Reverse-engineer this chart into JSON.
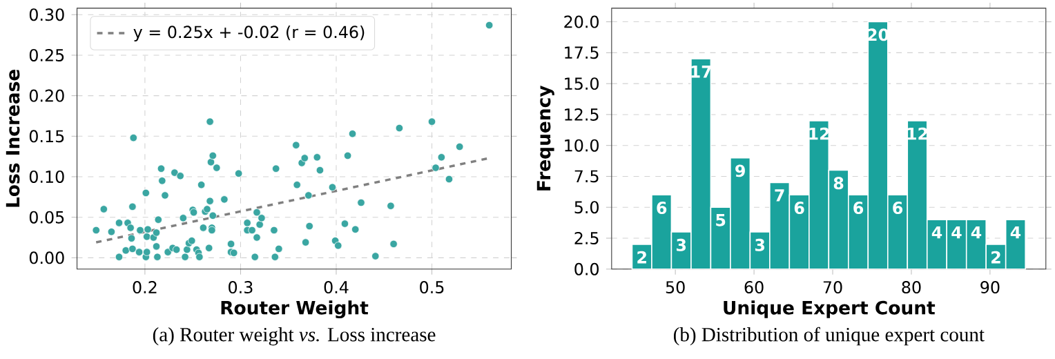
{
  "chart_data": [
    {
      "type": "scatter",
      "xlabel": "Router Weight",
      "ylabel": "Loss Increase",
      "annotations": [
        "(a) Router weight *vs.* Loss increase"
      ],
      "xlim": [
        0.129,
        0.583
      ],
      "ylim": [
        -0.014,
        0.308
      ],
      "xticks": [
        0.2,
        0.3,
        0.4,
        0.5
      ],
      "yticks": [
        {
          "value": 0,
          "label": "0.00"
        },
        {
          "value": 0.05,
          "label": "0.05"
        },
        {
          "value": 0.1,
          "label": "0.10"
        },
        {
          "value": 0.15,
          "label": "0.15"
        },
        {
          "value": 0.2,
          "label": "0.20"
        },
        {
          "value": 0.25,
          "label": "0.25"
        },
        {
          "value": 0.3,
          "label": "0.30"
        }
      ],
      "grid": true,
      "legend": "top left",
      "marker": "circle",
      "series": [
        {
          "color": "#3aa6a2",
          "x": [
            0.149,
            0.157,
            0.165,
            0.173,
            0.173,
            0.18,
            0.182,
            0.185,
            0.186,
            0.187,
            0.187,
            0.188,
            0.194,
            0.195,
            0.201,
            0.201,
            0.202,
            0.202,
            0.203,
            0.209,
            0.212,
            0.212,
            0.213,
            0.214,
            0.217,
            0.218,
            0.221,
            0.224,
            0.229,
            0.231,
            0.233,
            0.237,
            0.24,
            0.242,
            0.244,
            0.246,
            0.249,
            0.25,
            0.251,
            0.254,
            0.256,
            0.257,
            0.259,
            0.261,
            0.263,
            0.265,
            0.267,
            0.268,
            0.268,
            0.269,
            0.27,
            0.27,
            0.271,
            0.271,
            0.275,
            0.283,
            0.29,
            0.29,
            0.293,
            0.298,
            0.307,
            0.307,
            0.312,
            0.315,
            0.317,
            0.317,
            0.32,
            0.322,
            0.335,
            0.336,
            0.337,
            0.34,
            0.358,
            0.359,
            0.364,
            0.367,
            0.368,
            0.371,
            0.372,
            0.38,
            0.383,
            0.396,
            0.399,
            0.402,
            0.409,
            0.412,
            0.417,
            0.42,
            0.426,
            0.441,
            0.457,
            0.46,
            0.466,
            0.5,
            0.504,
            0.51,
            0.518,
            0.529,
            0.56
          ],
          "values": [
            0.034,
            0.06,
            0.032,
            0.043,
            0.001,
            0.009,
            0.043,
            0.037,
            0.024,
            0.063,
            0.011,
            0.148,
            0.007,
            0.034,
            0.08,
            0.001,
            0.007,
            0.026,
            0.035,
            0.025,
            0.014,
            0.031,
            0.001,
            0.047,
            0.11,
            0.095,
            0.077,
            0.007,
            0.012,
            0.105,
            0.01,
            0.101,
            0.049,
            0.001,
            0.01,
            0.018,
            0.021,
            0.059,
            0.056,
            0.01,
            0.006,
            0.001,
            0.09,
            0.037,
            0.057,
            0.06,
            0.012,
            0.07,
            0.168,
            0.118,
            0.037,
            0.034,
            0.052,
            0.126,
            0.111,
            0.072,
            0.017,
            0.007,
            0.006,
            0.104,
            0.043,
            0.034,
            0.034,
            0.001,
            0.025,
            0.056,
            0.041,
            0.049,
            0.034,
            0.001,
            0.11,
            0.011,
            0.139,
            0.09,
            0.117,
            0.123,
            0.019,
            0.077,
            0.039,
            0.124,
            0.108,
            0.087,
            0.021,
            0.015,
            0.042,
            0.126,
            0.153,
            0.035,
            0.068,
            0.002,
            0.064,
            0.017,
            0.16,
            0.168,
            0.111,
            0.124,
            0.097,
            0.137,
            0.287
          ]
        },
        {
          "type": "line",
          "name": "y = 0.25x + -0.02 (r = 0.46)",
          "color": "#808080",
          "line_style": "dashed",
          "marker": "none",
          "x": [
            0.149,
            0.56
          ],
          "values": [
            0.019,
            0.123
          ]
        }
      ]
    },
    {
      "type": "histogram",
      "xlabel": "Unique Expert Count",
      "ylabel": "Frequency",
      "annotations": [
        "(b) Distribution of unique expert count"
      ],
      "bins": [
        44.5,
        47,
        49.5,
        52,
        54.5,
        57,
        59.5,
        62,
        64.5,
        67,
        69.5,
        72,
        74.5,
        77,
        79.5,
        82,
        84.5,
        87,
        89.5,
        92,
        94.5
      ],
      "values": [
        2,
        6,
        3,
        17,
        5,
        9,
        3,
        7,
        6,
        12,
        8,
        6,
        20,
        6,
        12,
        4,
        4,
        4,
        2,
        4
      ],
      "color": "#1aa39d",
      "data_labels": true,
      "xlim": [
        41.9,
        97.1
      ],
      "ylim": [
        0,
        21.1
      ],
      "xticks": [
        50,
        60,
        70,
        80,
        90
      ],
      "yticks": [
        {
          "value": 0,
          "label": "0.0"
        },
        {
          "value": 2.5,
          "label": "2.5"
        },
        {
          "value": 5,
          "label": "5.0"
        },
        {
          "value": 7.5,
          "label": "7.5"
        },
        {
          "value": 10,
          "label": "10.0"
        },
        {
          "value": 12.5,
          "label": "12.5"
        },
        {
          "value": 15,
          "label": "15.0"
        },
        {
          "value": 17.5,
          "label": "17.5"
        },
        {
          "value": 20,
          "label": "20.0"
        }
      ],
      "grid": "y"
    }
  ]
}
